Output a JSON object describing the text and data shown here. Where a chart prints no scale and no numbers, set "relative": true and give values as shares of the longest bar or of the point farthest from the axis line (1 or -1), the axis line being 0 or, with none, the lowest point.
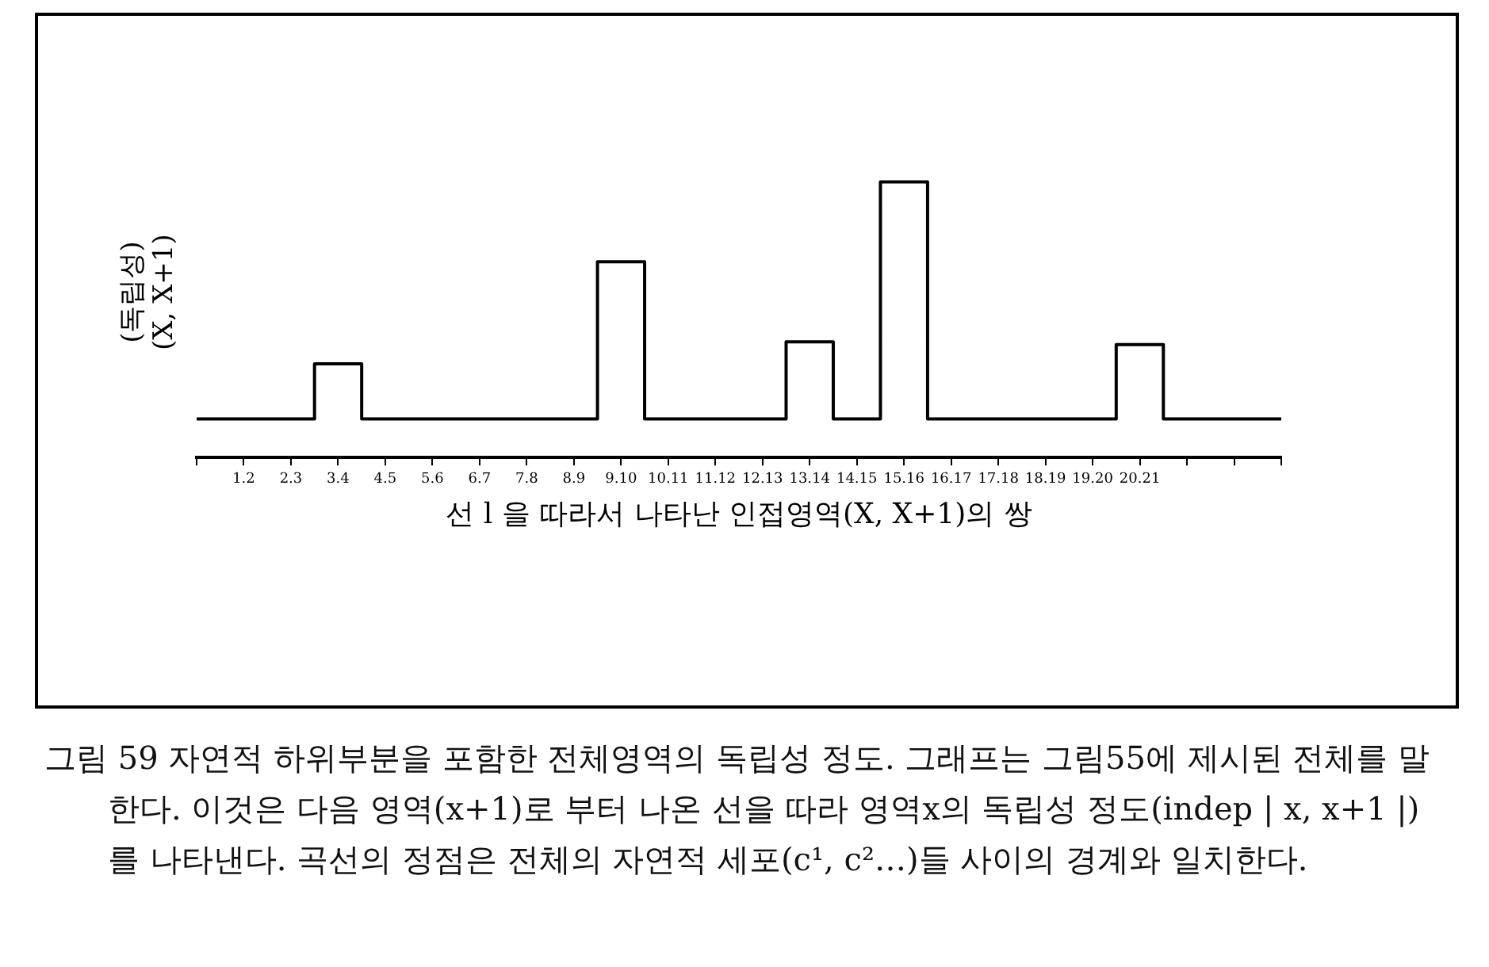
{
  "chart_data": {
    "type": "step",
    "relative": true,
    "xlabel": "선 l 을 따라서 나타난 인접영역(X, X+1)의 쌍",
    "ylabel": "(독립성)\n(X, X+1)",
    "categories": [
      null,
      "1.2",
      "2.3",
      "3.4",
      "4.5",
      "5.6",
      "6.7",
      "7.8",
      "8.9",
      "9.10",
      "10.11",
      "11.12",
      "12.13",
      "13.14",
      "14.15",
      "15.16",
      "16.17",
      "17.18",
      "18.19",
      "19.20",
      "20.21",
      null,
      null,
      null
    ],
    "series": [
      {
        "color": "#000000",
        "values": [
          0.14,
          0.14,
          0.14,
          0.34,
          0.14,
          0.14,
          0.14,
          0.14,
          0.14,
          0.71,
          0.14,
          0.14,
          0.14,
          0.42,
          0.14,
          1,
          0.14,
          0.14,
          0.14,
          0.14,
          0.41,
          0.14,
          0.14,
          0.14
        ]
      }
    ],
    "annotations": [
      "그림 59  자연적 하위부분을 포함한 전체영역의 독립성 정도. 그래프는 그림55에 제시된 전체를 말한다. 이것은 다음 영역(x+1)로 부터 나온 선을 따라 영역x의 독립성 정도(indep | x, x+1 |)를 나타낸다. 곡선의 정점은 전체의 자연적 세포(c¹, c²…)들 사이의 경계와 일치한다."
    ]
  }
}
